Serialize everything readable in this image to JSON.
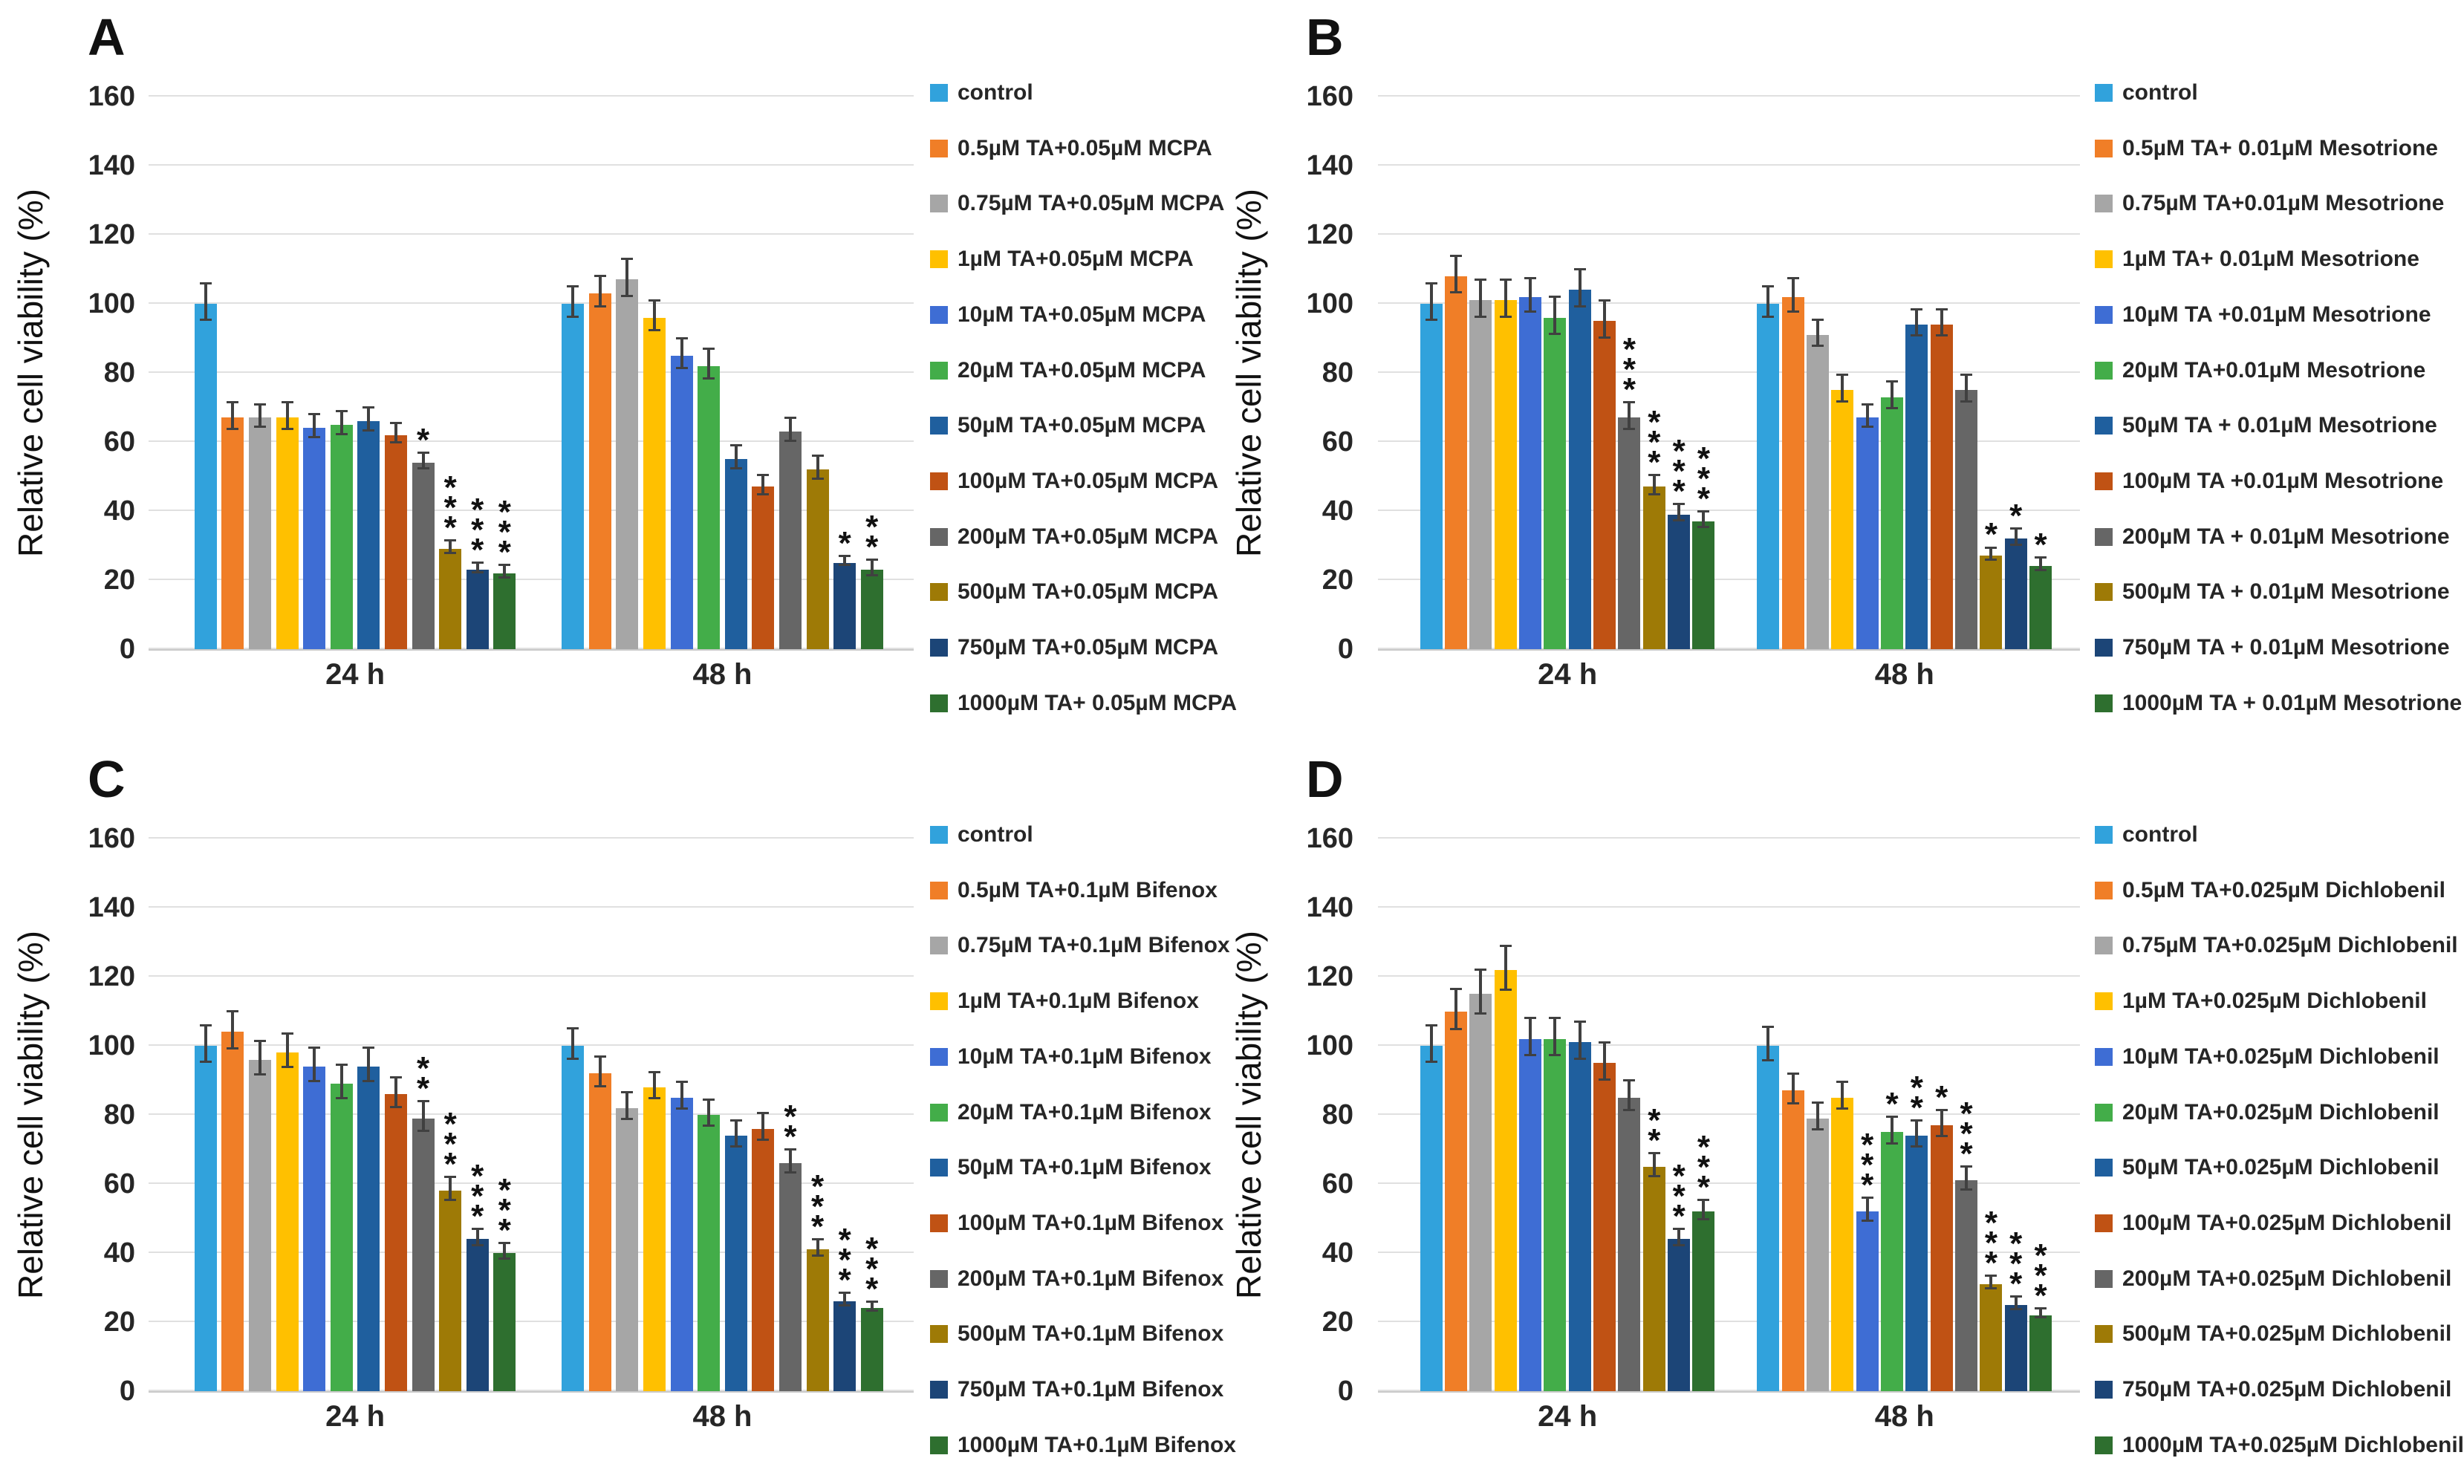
{
  "figure": {
    "y_axis_label": "Relative cell viability (%)",
    "y_ticks": [
      0,
      20,
      40,
      60,
      80,
      100,
      120,
      140,
      160
    ],
    "ylim": [
      0,
      160
    ],
    "categories": [
      "24 h",
      "48 h"
    ],
    "grid_color": "#e0e0e0",
    "error_bar_color": "#404040",
    "significance_symbol": "*"
  },
  "chart_data": [
    {
      "panel": "A",
      "type": "bar",
      "ylabel": "Relative cell viability (%)",
      "ylim": [
        0,
        160
      ],
      "categories": [
        "24 h",
        "48 h"
      ],
      "legend_position": "right",
      "series": [
        {
          "name": "control",
          "color": "#31A2DC",
          "values": [
            100,
            100
          ],
          "errors": [
            5,
            4
          ],
          "sig": [
            "",
            ""
          ]
        },
        {
          "name": "0.5µM TA+0.05µM MCPA",
          "color": "#F07E27",
          "values": [
            67,
            103
          ],
          "errors": [
            3.5,
            4
          ],
          "sig": [
            "",
            ""
          ]
        },
        {
          "name": "0.75µM TA+0.05µM MCPA",
          "color": "#A6A6A6",
          "values": [
            67,
            107
          ],
          "errors": [
            3,
            5
          ],
          "sig": [
            "",
            ""
          ]
        },
        {
          "name": "1µM TA+0.05µM MCPA",
          "color": "#FFC000",
          "values": [
            67,
            96
          ],
          "errors": [
            3.5,
            4
          ],
          "sig": [
            "",
            ""
          ]
        },
        {
          "name": "10µM TA+0.05µM MCPA",
          "color": "#3E6DD4",
          "values": [
            64,
            85
          ],
          "errors": [
            3,
            4
          ],
          "sig": [
            "",
            ""
          ]
        },
        {
          "name": "20µM TA+0.05µM MCPA",
          "color": "#43AD49",
          "values": [
            65,
            82
          ],
          "errors": [
            3,
            4
          ],
          "sig": [
            "",
            ""
          ]
        },
        {
          "name": "50µM TA+0.05µM MCPA",
          "color": "#1F5F9E",
          "values": [
            66,
            55
          ],
          "errors": [
            3,
            3
          ],
          "sig": [
            "",
            ""
          ]
        },
        {
          "name": "100µM TA+0.05µM MCPA",
          "color": "#C05214",
          "values": [
            62,
            47
          ],
          "errors": [
            2.5,
            2.5
          ],
          "sig": [
            "",
            ""
          ]
        },
        {
          "name": "200µM TA+0.05µM MCPA",
          "color": "#666666",
          "values": [
            54,
            63
          ],
          "errors": [
            2,
            3
          ],
          "sig": [
            "*",
            ""
          ]
        },
        {
          "name": "500µM TA+0.05µM MCPA",
          "color": "#9E7A06",
          "values": [
            29,
            52
          ],
          "errors": [
            1.5,
            3
          ],
          "sig": [
            "***",
            ""
          ]
        },
        {
          "name": "750µM TA+0.05µM MCPA",
          "color": "#1C4577",
          "values": [
            23,
            25
          ],
          "errors": [
            1,
            1
          ],
          "sig": [
            "***",
            "*"
          ]
        },
        {
          "name": "1000µM TA+ 0.05µM MCPA",
          "color": "#2E6F2F",
          "values": [
            22,
            23
          ],
          "errors": [
            1.5,
            2
          ],
          "sig": [
            "***",
            "**"
          ]
        }
      ]
    },
    {
      "panel": "B",
      "type": "bar",
      "ylabel": "Relative cell viability (%)",
      "ylim": [
        0,
        160
      ],
      "categories": [
        "24 h",
        "48 h"
      ],
      "legend_position": "right",
      "series": [
        {
          "name": "control",
          "color": "#31A2DC",
          "values": [
            100,
            100
          ],
          "errors": [
            5,
            4
          ],
          "sig": [
            "",
            ""
          ]
        },
        {
          "name": "0.5µM TA+ 0.01µM Mesotrione",
          "color": "#F07E27",
          "values": [
            108,
            102
          ],
          "errors": [
            5,
            4.5
          ],
          "sig": [
            "",
            ""
          ]
        },
        {
          "name": "0.75µM TA+0.01µM Mesotrione",
          "color": "#A6A6A6",
          "values": [
            101,
            91
          ],
          "errors": [
            5,
            3.5
          ],
          "sig": [
            "",
            ""
          ]
        },
        {
          "name": "1µM TA+ 0.01µM Mesotrione",
          "color": "#FFC000",
          "values": [
            101,
            75
          ],
          "errors": [
            5,
            3.5
          ],
          "sig": [
            "",
            ""
          ]
        },
        {
          "name": "10µM TA +0.01µM Mesotrione",
          "color": "#3E6DD4",
          "values": [
            102,
            67
          ],
          "errors": [
            4.5,
            3
          ],
          "sig": [
            "",
            ""
          ]
        },
        {
          "name": "20µM TA+0.01µM Mesotrione",
          "color": "#43AD49",
          "values": [
            96,
            73
          ],
          "errors": [
            5,
            3.5
          ],
          "sig": [
            "",
            ""
          ]
        },
        {
          "name": "50µM TA + 0.01µM Mesotrione",
          "color": "#1F5F9E",
          "values": [
            104,
            94
          ],
          "errors": [
            5,
            3.5
          ],
          "sig": [
            "",
            ""
          ]
        },
        {
          "name": "100µM TA +0.01µM Mesotrione",
          "color": "#C05214",
          "values": [
            95,
            94
          ],
          "errors": [
            5,
            3.5
          ],
          "sig": [
            "",
            ""
          ]
        },
        {
          "name": "200µM TA + 0.01µM Mesotrione",
          "color": "#666666",
          "values": [
            67,
            75
          ],
          "errors": [
            3.5,
            3.5
          ],
          "sig": [
            "***",
            ""
          ]
        },
        {
          "name": "500µM TA + 0.01µM Mesotrione",
          "color": "#9E7A06",
          "values": [
            47,
            27
          ],
          "errors": [
            2.5,
            1.5
          ],
          "sig": [
            "***",
            "*"
          ]
        },
        {
          "name": "750µM TA + 0.01µM Mesotrione",
          "color": "#1C4577",
          "values": [
            39,
            32
          ],
          "errors": [
            2,
            2
          ],
          "sig": [
            "***",
            "*"
          ]
        },
        {
          "name": "1000µM TA + 0.01µM Mesotrione",
          "color": "#2E6F2F",
          "values": [
            37,
            24
          ],
          "errors": [
            2,
            1.5
          ],
          "sig": [
            "***",
            "*"
          ]
        }
      ]
    },
    {
      "panel": "C",
      "type": "bar",
      "ylabel": "Relative cell viability (%)",
      "ylim": [
        0,
        160
      ],
      "categories": [
        "24 h",
        "48 h"
      ],
      "legend_position": "right",
      "series": [
        {
          "name": "control",
          "color": "#31A2DC",
          "values": [
            100,
            100
          ],
          "errors": [
            5,
            4
          ],
          "sig": [
            "",
            ""
          ]
        },
        {
          "name": "0.5µM TA+0.1µM Bifenox",
          "color": "#F07E27",
          "values": [
            104,
            92
          ],
          "errors": [
            5,
            4
          ],
          "sig": [
            "",
            ""
          ]
        },
        {
          "name": "0.75µM TA+0.1µM Bifenox",
          "color": "#A6A6A6",
          "values": [
            96,
            82
          ],
          "errors": [
            4.5,
            3.5
          ],
          "sig": [
            "",
            ""
          ]
        },
        {
          "name": "1µM TA+0.1µM Bifenox",
          "color": "#FFC000",
          "values": [
            98,
            88
          ],
          "errors": [
            4.5,
            3.5
          ],
          "sig": [
            "",
            ""
          ]
        },
        {
          "name": "10µM TA+0.1µM Bifenox",
          "color": "#3E6DD4",
          "values": [
            94,
            85
          ],
          "errors": [
            4.5,
            3.5
          ],
          "sig": [
            "",
            ""
          ]
        },
        {
          "name": "20µM TA+0.1µM Bifenox",
          "color": "#43AD49",
          "values": [
            89,
            80
          ],
          "errors": [
            4.5,
            3.5
          ],
          "sig": [
            "",
            ""
          ]
        },
        {
          "name": "50µM TA+0.1µM Bifenox",
          "color": "#1F5F9E",
          "values": [
            94,
            74
          ],
          "errors": [
            4.5,
            3.5
          ],
          "sig": [
            "",
            ""
          ]
        },
        {
          "name": "100µM TA+0.1µM Bifenox",
          "color": "#C05214",
          "values": [
            86,
            76
          ],
          "errors": [
            4,
            3.5
          ],
          "sig": [
            "",
            ""
          ]
        },
        {
          "name": "200µM TA+0.1µM Bifenox",
          "color": "#666666",
          "values": [
            79,
            66
          ],
          "errors": [
            4,
            3
          ],
          "sig": [
            "**",
            "**"
          ]
        },
        {
          "name": "500µM TA+0.1µM Bifenox",
          "color": "#9E7A06",
          "values": [
            58,
            41
          ],
          "errors": [
            3,
            2
          ],
          "sig": [
            "***",
            "***"
          ]
        },
        {
          "name": "750µM TA+0.1µM Bifenox",
          "color": "#1C4577",
          "values": [
            44,
            26
          ],
          "errors": [
            2,
            1.5
          ],
          "sig": [
            "***",
            "***"
          ]
        },
        {
          "name": "1000µM TA+0.1µM Bifenox",
          "color": "#2E6F2F",
          "values": [
            40,
            24
          ],
          "errors": [
            2,
            1
          ],
          "sig": [
            "***",
            "***"
          ]
        }
      ]
    },
    {
      "panel": "D",
      "type": "bar",
      "ylabel": "Relative cell viability (%)",
      "ylim": [
        0,
        160
      ],
      "categories": [
        "24 h",
        "48 h"
      ],
      "legend_position": "right",
      "series": [
        {
          "name": "control",
          "color": "#31A2DC",
          "values": [
            100,
            100
          ],
          "errors": [
            5,
            4.5
          ],
          "sig": [
            "",
            ""
          ]
        },
        {
          "name": "0.5µM TA+0.025µM Dichlobenil",
          "color": "#F07E27",
          "values": [
            110,
            87
          ],
          "errors": [
            5.5,
            4
          ],
          "sig": [
            "",
            ""
          ]
        },
        {
          "name": "0.75µM TA+0.025µM Dichlobenil",
          "color": "#A6A6A6",
          "values": [
            115,
            79
          ],
          "errors": [
            6,
            3.5
          ],
          "sig": [
            "",
            ""
          ]
        },
        {
          "name": "1µM TA+0.025µM Dichlobenil",
          "color": "#FFC000",
          "values": [
            122,
            85
          ],
          "errors": [
            6,
            3.5
          ],
          "sig": [
            "",
            ""
          ]
        },
        {
          "name": "10µM TA+0.025µM Dichlobenil",
          "color": "#3E6DD4",
          "values": [
            102,
            52
          ],
          "errors": [
            5,
            3
          ],
          "sig": [
            "",
            "***"
          ]
        },
        {
          "name": "20µM TA+0.025µM Dichlobenil",
          "color": "#43AD49",
          "values": [
            102,
            75
          ],
          "errors": [
            5,
            3.5
          ],
          "sig": [
            "",
            "*"
          ]
        },
        {
          "name": "50µM TA+0.025µM Dichlobenil",
          "color": "#1F5F9E",
          "values": [
            101,
            74
          ],
          "errors": [
            5,
            3.5
          ],
          "sig": [
            "",
            "**"
          ]
        },
        {
          "name": "100µM TA+0.025µM Dichlobenil",
          "color": "#C05214",
          "values": [
            95,
            77
          ],
          "errors": [
            5,
            3.5
          ],
          "sig": [
            "",
            "*"
          ]
        },
        {
          "name": "200µM TA+0.025µM Dichlobenil",
          "color": "#666666",
          "values": [
            85,
            61
          ],
          "errors": [
            4,
            3
          ],
          "sig": [
            "",
            "***"
          ]
        },
        {
          "name": "500µM TA+0.025µM Dichlobenil",
          "color": "#9E7A06",
          "values": [
            65,
            31
          ],
          "errors": [
            3,
            1.5
          ],
          "sig": [
            "**",
            "***"
          ]
        },
        {
          "name": "750µM TA+0.025µM Dichlobenil",
          "color": "#1C4577",
          "values": [
            44,
            25
          ],
          "errors": [
            2,
            1.5
          ],
          "sig": [
            "***",
            "***"
          ]
        },
        {
          "name": "1000µM TA+0.025µM Dichlobenil",
          "color": "#2E6F2F",
          "values": [
            52,
            22
          ],
          "errors": [
            2.5,
            1
          ],
          "sig": [
            "***",
            "***"
          ]
        }
      ]
    }
  ]
}
